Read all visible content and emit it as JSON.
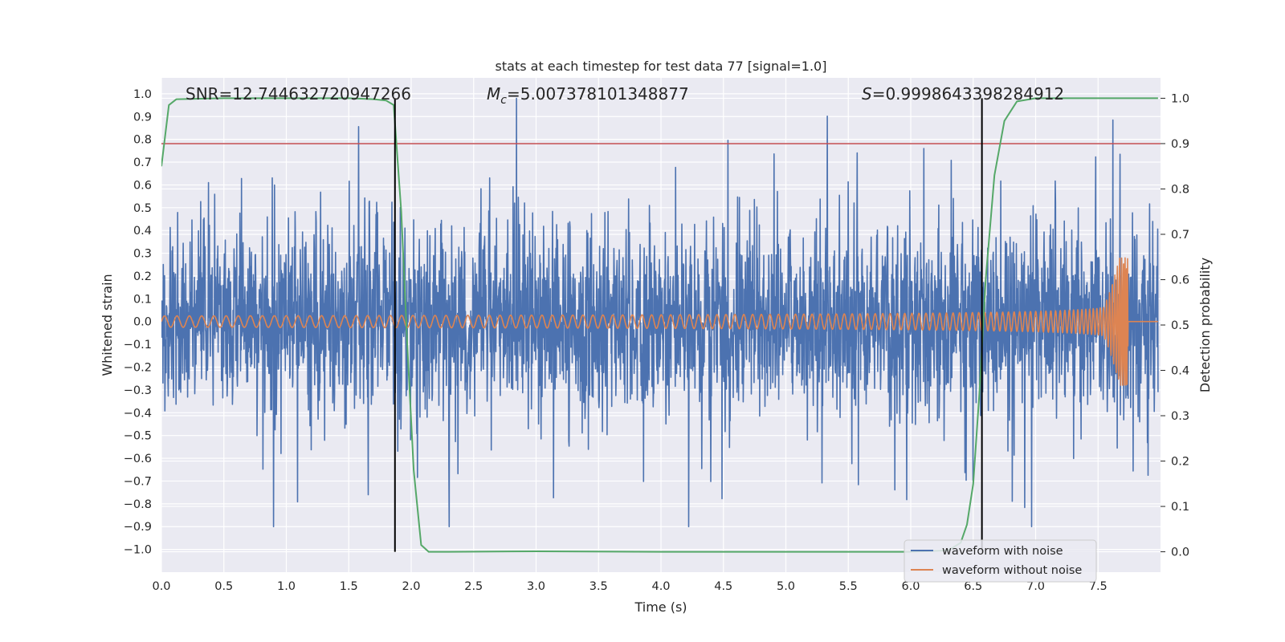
{
  "chart_data": {
    "type": "line",
    "title": "stats at each timestep for test data 77 [signal=1.0]",
    "xlabel": "Time (s)",
    "ylabel": "Whitened strain",
    "y2label": "Detection probability",
    "xlim": [
      0.0,
      8.0
    ],
    "ylim": [
      -1.1,
      1.07
    ],
    "y2lim": [
      -0.045,
      1.045
    ],
    "xticks": [
      0.0,
      0.5,
      1.0,
      1.5,
      2.0,
      2.5,
      3.0,
      3.5,
      4.0,
      4.5,
      5.0,
      5.5,
      6.0,
      6.5,
      7.0,
      7.5
    ],
    "xtick_labels": [
      "0.0",
      "0.5",
      "1.0",
      "1.5",
      "2.0",
      "2.5",
      "3.0",
      "3.5",
      "4.0",
      "4.5",
      "5.0",
      "5.5",
      "6.0",
      "6.5",
      "7.0",
      "7.5"
    ],
    "yticks": [
      1.0,
      0.9,
      0.8,
      0.7,
      0.6,
      0.5,
      0.4,
      0.3,
      0.2,
      0.1,
      0.0,
      -0.1,
      -0.2,
      -0.3,
      -0.4,
      -0.5,
      -0.6,
      -0.7,
      -0.8,
      -0.9,
      -1.0
    ],
    "ytick_labels": [
      "1.0",
      "0.9",
      "0.8",
      "0.7",
      "0.6",
      "0.5",
      "0.4",
      "0.3",
      "0.2",
      "0.1",
      "0.0",
      "−0.1",
      "−0.2",
      "−0.3",
      "−0.4",
      "−0.5",
      "−0.6",
      "−0.7",
      "−0.8",
      "−0.9",
      "−1.0"
    ],
    "y2ticks": [
      1.0,
      0.9,
      0.8,
      0.7,
      0.6,
      0.5,
      0.4,
      0.3,
      0.2,
      0.1,
      0.0
    ],
    "y2tick_labels": [
      "1.0",
      "0.9",
      "0.8",
      "0.7",
      "0.6",
      "0.5",
      "0.4",
      "0.3",
      "0.2",
      "0.1",
      "0.0"
    ],
    "annotations": {
      "snr": "SNR=12.744632720947266",
      "mc_symbol": "M",
      "mc_subscript": "c",
      "mc_value": "=5.007378101348877",
      "s_symbol": "S",
      "s_value": "=0.9998643398284912"
    },
    "legend": {
      "placement": "lower-right",
      "entries": [
        {
          "label": "waveform with noise",
          "color": "#4c72b0"
        },
        {
          "label": "waveform without noise",
          "color": "#dd8452"
        }
      ]
    },
    "series": [
      {
        "name": "waveform with noise",
        "axis": "left",
        "color": "#4c72b0",
        "kind": "noise",
        "x_range": [
          0.0,
          7.98
        ],
        "typical_abs": 0.5,
        "max": 0.98,
        "min": -0.9
      },
      {
        "name": "waveform without noise",
        "axis": "left",
        "color": "#dd8452",
        "kind": "chirp",
        "x_range": [
          0.0,
          7.98
        ],
        "merger_time": 7.74,
        "start_amplitude": 0.025,
        "peak_amplitude": 0.28,
        "peak_negative": -0.35
      },
      {
        "name": "detection probability",
        "axis": "right",
        "color": "#55a868",
        "kind": "line",
        "x": [
          0.0,
          0.06,
          0.12,
          0.5,
          1.0,
          1.5,
          1.7,
          1.8,
          1.86,
          1.92,
          1.97,
          2.02,
          2.08,
          2.14,
          2.3,
          3.0,
          4.0,
          5.0,
          6.0,
          6.3,
          6.4,
          6.45,
          6.5,
          6.55,
          6.6,
          6.67,
          6.75,
          6.85,
          7.0,
          7.5,
          7.98
        ],
        "y": [
          0.85,
          0.985,
          0.998,
          1.0,
          1.0,
          1.0,
          0.998,
          0.995,
          0.985,
          0.75,
          0.45,
          0.18,
          0.015,
          0.0,
          0.0,
          0.001,
          0.0,
          0.0,
          0.0,
          0.003,
          0.02,
          0.06,
          0.15,
          0.35,
          0.6,
          0.83,
          0.95,
          0.993,
          1.0,
          1.0,
          1.0
        ]
      },
      {
        "name": "threshold",
        "axis": "right",
        "color": "#c44e52",
        "kind": "hline",
        "value": 0.9
      }
    ],
    "vlines": [
      {
        "x": 1.87,
        "color": "#000000"
      },
      {
        "x": 6.57,
        "color": "#000000"
      }
    ]
  }
}
